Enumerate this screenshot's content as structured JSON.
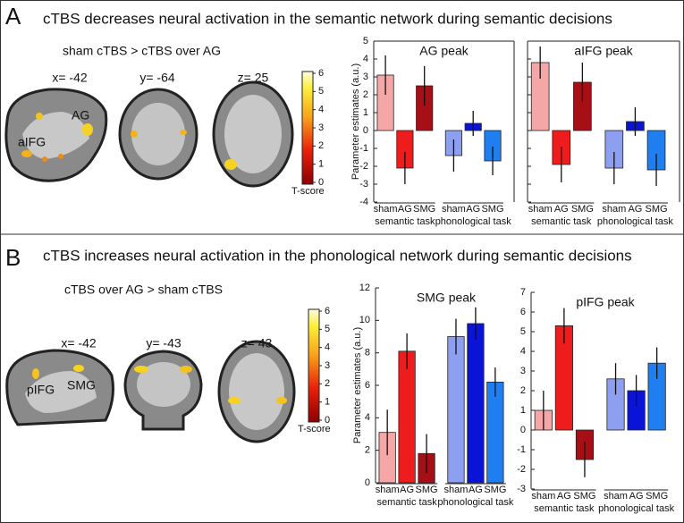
{
  "figure": {
    "panels": [
      {
        "label": "A",
        "title": "cTBS decreases neural activation in the semantic network during semantic decisions",
        "contrast": "sham cTBS > cTBS over AG",
        "slices": [
          "x= -42",
          "y= -64",
          "z= 25"
        ],
        "regions": [
          "AG",
          "aIFG"
        ],
        "colorbar": {
          "ticks": [
            0,
            1,
            2,
            3,
            4,
            5,
            6
          ],
          "label": "T-score"
        }
      },
      {
        "label": "B",
        "title": "cTBS increases neural activation in the phonological network during semantic decisions",
        "contrast": "cTBS over AG > sham cTBS",
        "slices": [
          "x= -42",
          "y= -43",
          "z= 43"
        ],
        "regions": [
          "SMG",
          "pIFG"
        ],
        "colorbar": {
          "ticks": [
            0,
            1,
            2,
            3,
            4,
            5,
            6
          ],
          "label": "T-score"
        }
      }
    ]
  },
  "chart_data": [
    {
      "type": "bar",
      "title": "AG peak",
      "ylabel": "Parameter estimates (a.u.)",
      "categories": [
        "sham",
        "AG",
        "SMG",
        "sham",
        "AG",
        "SMG"
      ],
      "groups": [
        "semantic task",
        "phonological task"
      ],
      "values": [
        3.1,
        -2.1,
        2.5,
        -1.4,
        0.4,
        -1.7
      ],
      "errors": [
        1.1,
        0.9,
        1.1,
        0.9,
        0.7,
        0.8
      ],
      "colors": [
        "#f5a7a7",
        "#ee1c1c",
        "#a50f15",
        "#8d9ff0",
        "#0a14d8",
        "#1f7ef0"
      ],
      "ylim": [
        -4,
        5
      ],
      "yticks": [
        -4,
        -3,
        -2,
        -1,
        0,
        1,
        2,
        3,
        4,
        5
      ]
    },
    {
      "type": "bar",
      "title": "aIFG peak",
      "categories": [
        "sham",
        "AG",
        "SMG",
        "sham",
        "AG",
        "SMG"
      ],
      "groups": [
        "semantic task",
        "phonological task"
      ],
      "values": [
        3.8,
        -1.9,
        2.7,
        -2.1,
        0.5,
        -2.2
      ],
      "errors": [
        0.9,
        1.0,
        1.1,
        0.9,
        0.8,
        0.9
      ],
      "colors": [
        "#f5a7a7",
        "#ee1c1c",
        "#a50f15",
        "#8d9ff0",
        "#0a14d8",
        "#1f7ef0"
      ],
      "ylim": [
        -4,
        5
      ],
      "yticks": [
        -4,
        -3,
        -2,
        -1,
        0,
        1,
        2,
        3,
        4,
        5
      ]
    },
    {
      "type": "bar",
      "title": "SMG peak",
      "ylabel": "Parameter estimates (a.u.)",
      "categories": [
        "sham",
        "AG",
        "SMG",
        "sham",
        "AG",
        "SMG"
      ],
      "groups": [
        "semantic task",
        "phonological task"
      ],
      "values": [
        3.1,
        8.1,
        1.8,
        9.0,
        9.8,
        6.2
      ],
      "errors": [
        1.4,
        1.1,
        1.2,
        1.1,
        1.0,
        0.9
      ],
      "colors": [
        "#f5a7a7",
        "#ee1c1c",
        "#a50f15",
        "#8d9ff0",
        "#0a14d8",
        "#1f7ef0"
      ],
      "ylim": [
        0,
        12
      ],
      "yticks": [
        0,
        2,
        4,
        6,
        8,
        10,
        12
      ]
    },
    {
      "type": "bar",
      "title": "pIFG peak",
      "categories": [
        "sham",
        "AG",
        "SMG",
        "sham",
        "AG",
        "SMG"
      ],
      "groups": [
        "semantic task",
        "phonological task"
      ],
      "values": [
        1.0,
        5.3,
        -1.5,
        2.6,
        2.0,
        3.4
      ],
      "errors": [
        1.0,
        0.9,
        0.9,
        0.8,
        0.8,
        0.8
      ],
      "colors": [
        "#f5a7a7",
        "#ee1c1c",
        "#a50f15",
        "#8d9ff0",
        "#0a14d8",
        "#1f7ef0"
      ],
      "ylim": [
        -3,
        7
      ],
      "yticks": [
        -3,
        -2,
        -1,
        0,
        1,
        2,
        3,
        4,
        5,
        6,
        7
      ]
    }
  ]
}
